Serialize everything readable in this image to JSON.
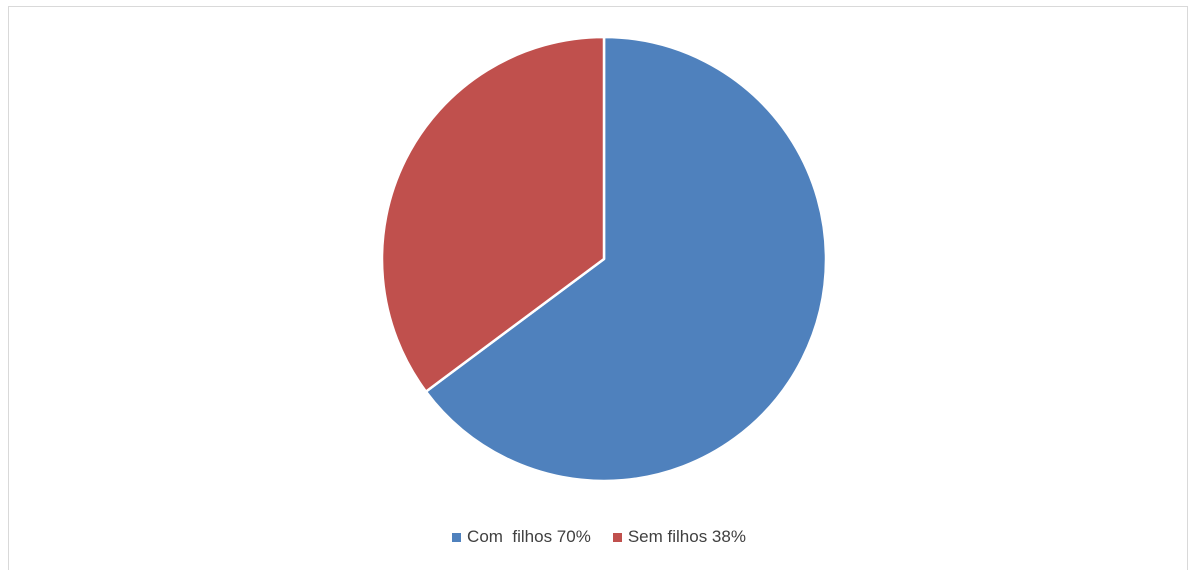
{
  "chart_data": {
    "type": "pie",
    "title": "",
    "slices": [
      {
        "label": "Com  filhos 70%",
        "value": 70,
        "color": "#4F81BD"
      },
      {
        "label": "Sem filhos 38%",
        "value": 38,
        "color": "#C0504D"
      }
    ],
    "start_angle_deg": 0,
    "direction": "clockwise",
    "legend_position": "bottom"
  }
}
